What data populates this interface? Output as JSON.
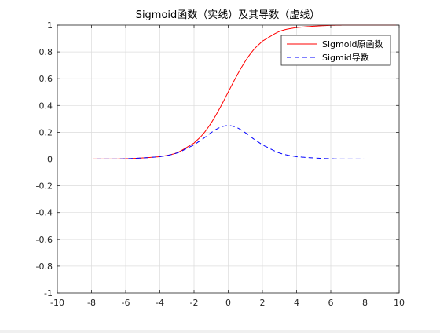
{
  "chart_data": {
    "type": "line",
    "title": "Sigmoid函数（实线）及其导数（虚线）",
    "xlabel": "",
    "ylabel": "",
    "xlim": [
      -10,
      10
    ],
    "ylim": [
      -1,
      1
    ],
    "x_ticks": [
      -10,
      -8,
      -6,
      -4,
      -2,
      0,
      2,
      4,
      6,
      8,
      10
    ],
    "y_ticks": [
      -1,
      -0.8,
      -0.6,
      -0.4,
      -0.2,
      0,
      0.2,
      0.4,
      0.6,
      0.8,
      1
    ],
    "x_tick_labels": [
      "-10",
      "-8",
      "-6",
      "-4",
      "-2",
      "0",
      "2",
      "4",
      "6",
      "8",
      "10"
    ],
    "y_tick_labels": [
      "-1",
      "-0.8",
      "-0.6",
      "-0.4",
      "-0.2",
      "0",
      "0.2",
      "0.4",
      "0.6",
      "0.8",
      "1"
    ],
    "grid": true,
    "legend_position": "top-right",
    "x": [
      -10,
      -8,
      -6,
      -4,
      -3,
      -2,
      -1.5,
      -1,
      -0.5,
      0,
      0.5,
      1,
      1.5,
      2,
      3,
      4,
      6,
      8,
      10
    ],
    "series": [
      {
        "name": "Sigmoid原函数",
        "color": "#ff0000",
        "line_style": "solid",
        "values": [
          4.54e-05,
          0.000335,
          0.00247,
          0.018,
          0.0474,
          0.119,
          0.182,
          0.269,
          0.378,
          0.5,
          0.622,
          0.731,
          0.818,
          0.881,
          0.953,
          0.982,
          0.998,
          0.9997,
          1.0
        ]
      },
      {
        "name": "Sigmid导数",
        "color": "#0000ff",
        "line_style": "dashed",
        "values": [
          4.54e-05,
          0.000335,
          0.00247,
          0.0177,
          0.0452,
          0.105,
          0.149,
          0.197,
          0.235,
          0.25,
          0.235,
          0.197,
          0.149,
          0.105,
          0.0452,
          0.0177,
          0.00247,
          0.000335,
          4.54e-05
        ]
      }
    ]
  }
}
